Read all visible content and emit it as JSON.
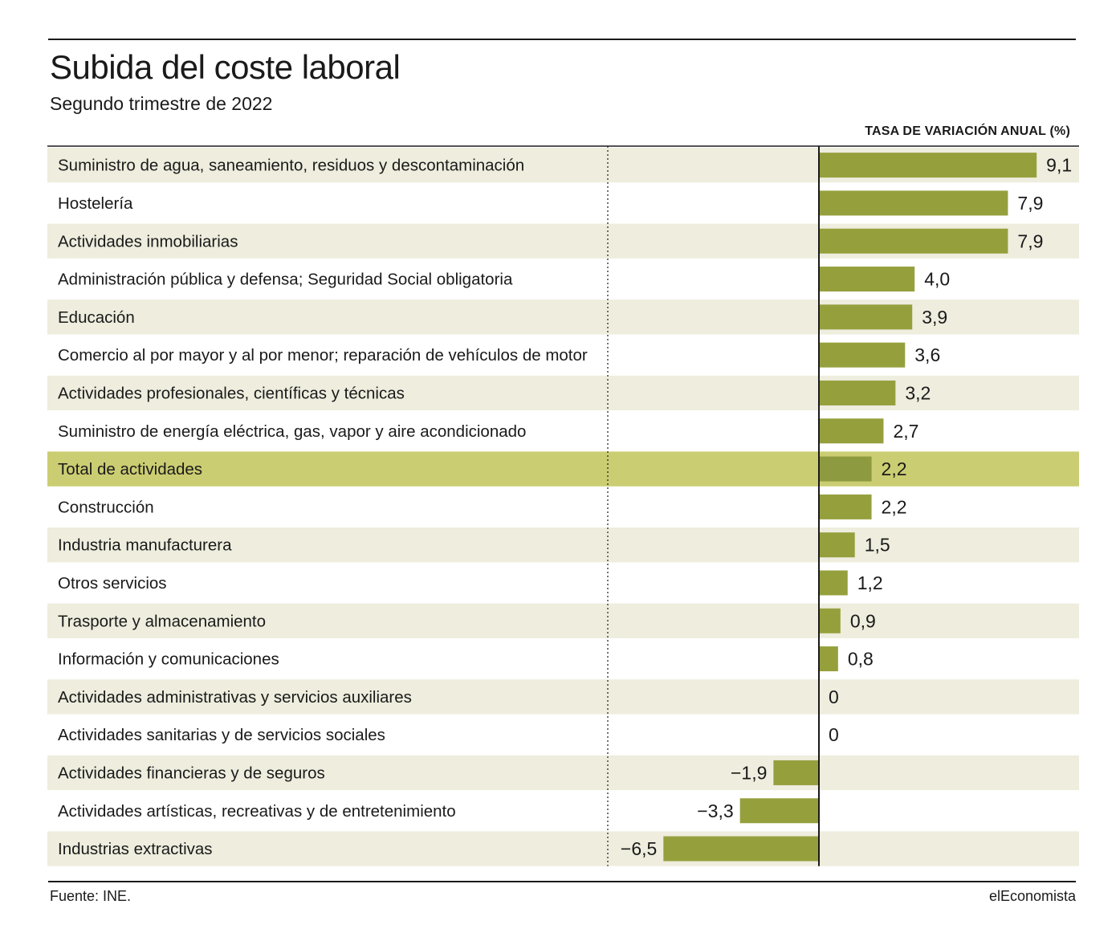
{
  "header": {
    "title": "Subida del coste laboral",
    "subtitle": "Segundo trimestre de 2022",
    "axis_header": "TASA DE VARIACIÓN ANUAL (%)"
  },
  "footer": {
    "source": "Fuente: INE.",
    "brand": "elEconomista"
  },
  "colors": {
    "bar": "#95a03d",
    "bar_highlight": "#8e9a3f",
    "stripe": "#eeedde",
    "highlight_row": "#cbcd72",
    "text": "#1a1a1a"
  },
  "chart_data": {
    "type": "bar",
    "orientation": "horizontal",
    "xlabel": "TASA DE VARIACIÓN ANUAL (%)",
    "highlight_category": "Total de actividades",
    "categories": [
      "Suministro de agua, saneamiento, residuos y descontaminación",
      "Hostelería",
      "Actividades inmobiliarias",
      "Administración pública y defensa; Seguridad Social obligatoria",
      "Educación",
      "Comercio al por mayor y al por menor; reparación de vehículos de motor",
      "Actividades profesionales, científicas y técnicas",
      "Suministro de energía eléctrica, gas, vapor y aire acondicionado",
      "Total de actividades",
      "Construcción",
      "Industria manufacturera",
      "Otros servicios",
      "Trasporte y almacenamiento",
      "Información y comunicaciones",
      "Actividades administrativas y servicios auxiliares",
      "Actividades sanitarias y de servicios sociales",
      "Actividades financieras y de seguros",
      "Actividades artísticas, recreativas y de entretenimiento",
      "Industrias extractivas"
    ],
    "values": [
      9.1,
      7.9,
      7.9,
      4.0,
      3.9,
      3.6,
      3.2,
      2.7,
      2.2,
      2.2,
      1.5,
      1.2,
      0.9,
      0.8,
      0,
      0,
      -1.9,
      -3.3,
      -6.5
    ],
    "value_labels": [
      "9,1",
      "7,9",
      "7,9",
      "4,0",
      "3,9",
      "3,6",
      "3,2",
      "2,7",
      "2,2",
      "2,2",
      "1,5",
      "1,2",
      "0,9",
      "0,8",
      "0",
      "0",
      "−1,9",
      "−3,3",
      "−6,5"
    ]
  }
}
